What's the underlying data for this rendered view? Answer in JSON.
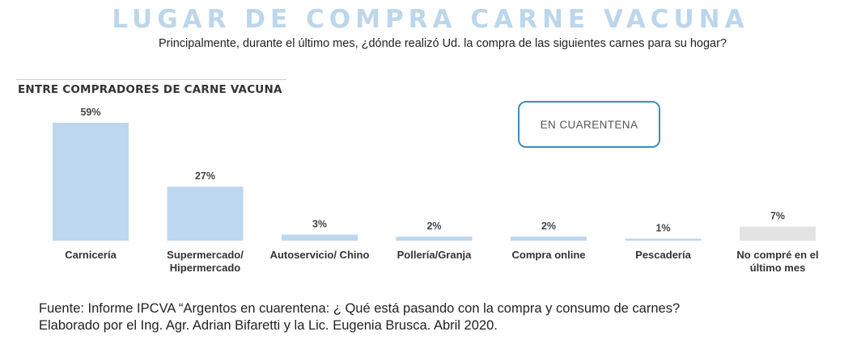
{
  "title": "LUGAR DE COMPRA CARNE VACUNA",
  "subtitle": "Principalmente, durante el último mes, ¿dónde realizó Ud. la compra de las siguientes carnes para su hogar?",
  "segment_label": "ENTRE COMPRADORES DE CARNE VACUNA",
  "badge_label": "EN CUARENTENA",
  "source": {
    "line1": "Fuente: Informe IPCVA “Argentos en cuarentena: ¿ Qué está pasando con la compra y consumo de carnes?",
    "line2": "Elaborado por el Ing. Agr. Adrian Bifaretti y la Lic. Eugenia Brusca. Abril 2020."
  },
  "colors": {
    "bar": "#bdd7ee",
    "bar_muted": "#e3e3e3",
    "title": "#bcd6ec",
    "badge_border": "#3f8fb4"
  },
  "chart_data": {
    "type": "bar",
    "categories": [
      [
        "Carnicería"
      ],
      [
        "Supermercado/",
        "Hipermercado"
      ],
      [
        "Autoservicio/ Chino"
      ],
      [
        "Pollería/Granja"
      ],
      [
        "Compra online"
      ],
      [
        "Pescadería"
      ],
      [
        "No compré en el",
        "último mes"
      ]
    ],
    "values": [
      59,
      27,
      3,
      2,
      2,
      1,
      7
    ],
    "data_labels": [
      "59%",
      "27%",
      "3%",
      "2%",
      "2%",
      "1%",
      "7%"
    ],
    "muted": [
      false,
      false,
      false,
      false,
      false,
      false,
      true
    ],
    "ylim": [
      0,
      59
    ],
    "grid": false,
    "legend": "none"
  }
}
